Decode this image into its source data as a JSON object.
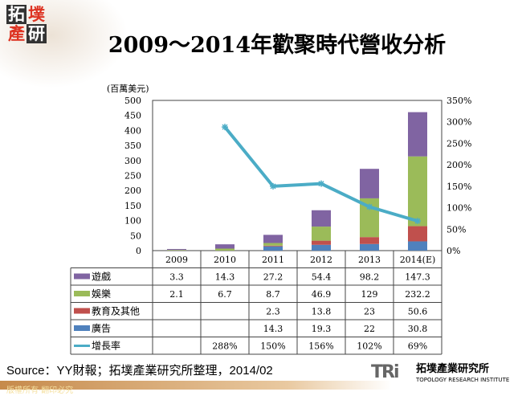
{
  "header": {
    "logo": "拓墣產研",
    "title": "2009～2014年歡聚時代營收分析"
  },
  "chart_data": {
    "type": "bar",
    "stacked": true,
    "title": "2009～2014年歡聚時代營收分析",
    "ylabel": "(百萬美元)",
    "ylim": [
      0,
      500
    ],
    "yticks": [
      0,
      50,
      100,
      150,
      200,
      250,
      300,
      350,
      400,
      450,
      500
    ],
    "y2lim": [
      0,
      350
    ],
    "y2ticks": [
      "0%",
      "50%",
      "100%",
      "150%",
      "200%",
      "250%",
      "300%",
      "350%"
    ],
    "categories": [
      "2009",
      "2010",
      "2011",
      "2012",
      "2013",
      "2014(E)"
    ],
    "series": [
      {
        "name": "遊戲",
        "color": "#8064a2",
        "values": [
          3.3,
          14.3,
          27.2,
          54.4,
          98.2,
          147.3
        ]
      },
      {
        "name": "娛樂",
        "color": "#9bbb59",
        "values": [
          2.1,
          6.7,
          8.7,
          46.9,
          129,
          232.2
        ]
      },
      {
        "name": "教育及其他",
        "color": "#c0504d",
        "values": [
          null,
          null,
          2.3,
          13.8,
          23,
          50.6
        ]
      },
      {
        "name": "廣告",
        "color": "#4f81bd",
        "values": [
          null,
          null,
          14.3,
          19.3,
          22,
          30.8
        ]
      }
    ],
    "line": {
      "name": "增長率",
      "color": "#4bacc6",
      "axis": "right",
      "values": [
        null,
        288,
        150,
        156,
        102,
        69
      ],
      "labels": [
        "",
        "288%",
        "150%",
        "156%",
        "102%",
        "69%"
      ]
    },
    "legend": "data-table"
  },
  "footer": {
    "source": "Source：YY財報；拓墣產業研究所整理，2014/02",
    "copyright": "版權所有‧翻印必究",
    "brand": "TRi",
    "brand_cn": "拓墣產業研究所",
    "brand_en": "TOPOLOGY RESEARCH INSTITUTE"
  }
}
